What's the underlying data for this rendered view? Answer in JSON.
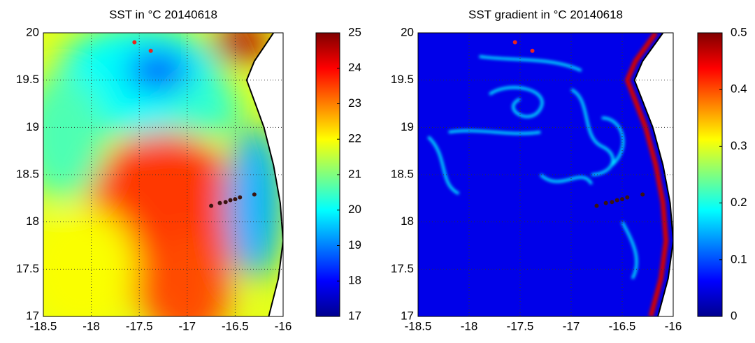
{
  "chart_data": [
    {
      "type": "map",
      "title": "SST in °C 20140618",
      "xlim": [
        -18.5,
        -16
      ],
      "xticks": [
        -18.5,
        -18,
        -17.5,
        -17,
        -16.5,
        -16
      ],
      "ylim": [
        17,
        20
      ],
      "yticks": [
        17,
        17.5,
        18,
        18.5,
        19,
        19.5,
        20
      ],
      "grid": true,
      "colorbar": {
        "lim": [
          17,
          25
        ],
        "ticks": [
          17,
          18,
          19,
          20,
          21,
          22,
          23,
          24,
          25
        ]
      },
      "series": [
        {
          "color": "#e8261e",
          "x": [
            -17.55,
            -17.38
          ],
          "y": [
            19.9,
            19.81
          ]
        },
        {
          "color": "#3a1410",
          "x": [
            -16.75,
            -16.66,
            -16.6,
            -16.55,
            -16.5,
            -16.45,
            -16.3
          ],
          "y": [
            18.17,
            18.2,
            18.21,
            18.23,
            18.24,
            18.26,
            18.29
          ]
        }
      ]
    },
    {
      "type": "map",
      "title": "SST gradient in °C 20140618",
      "xlim": [
        -18.5,
        -16
      ],
      "xticks": [
        -18.5,
        -18,
        -17.5,
        -17,
        -16.5,
        -16
      ],
      "ylim": [
        17,
        20
      ],
      "yticks": [
        17,
        17.5,
        18,
        18.5,
        19,
        19.5,
        20
      ],
      "grid": true,
      "colorbar": {
        "lim": [
          0,
          0.5
        ],
        "ticks": [
          0,
          0.1,
          0.2,
          0.3,
          0.4,
          0.5
        ]
      },
      "series": [
        {
          "color": "#e8261e",
          "x": [
            -17.55,
            -17.38
          ],
          "y": [
            19.9,
            19.81
          ]
        },
        {
          "color": "#3a1410",
          "x": [
            -16.75,
            -16.66,
            -16.6,
            -16.55,
            -16.5,
            -16.45,
            -16.3
          ],
          "y": [
            18.17,
            18.2,
            18.21,
            18.23,
            18.24,
            18.26,
            18.29
          ]
        }
      ]
    }
  ]
}
